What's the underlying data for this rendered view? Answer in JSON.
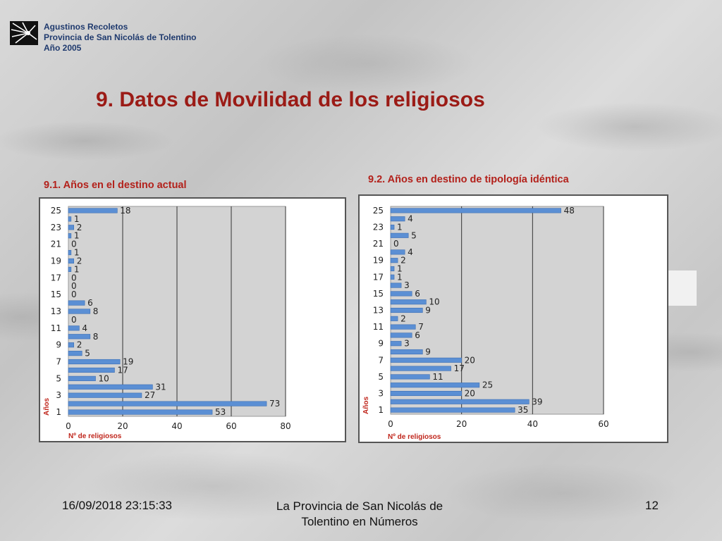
{
  "header": {
    "org_line1": "Agustinos Recoletos",
    "org_line2": "Provincia de San Nicolás de Tolentino",
    "org_line3": "Año 2005"
  },
  "slide": {
    "title": "9. Datos de Movilidad de los religiosos"
  },
  "footer": {
    "date": "16/09/2018 23:15:33",
    "center_line1": "La Provincia de San Nicolás de",
    "center_line2": "Tolentino en Números",
    "page": "12"
  },
  "colors": {
    "bar": "#5b8fd4",
    "title": "#9b1b16",
    "axis_label": "#c0261c",
    "plot_bg": "#d3d3d3"
  },
  "chart_data": [
    {
      "type": "bar",
      "orientation": "horizontal",
      "title": "9.1. Años en el destino actual",
      "xlabel": "Nº de religiosos",
      "ylabel": "Años",
      "categories": [
        1,
        2,
        3,
        4,
        5,
        6,
        7,
        8,
        9,
        10,
        11,
        12,
        13,
        14,
        15,
        16,
        17,
        18,
        19,
        20,
        21,
        22,
        23,
        24,
        25
      ],
      "values": [
        53,
        73,
        27,
        31,
        10,
        17,
        19,
        5,
        2,
        8,
        4,
        0,
        8,
        6,
        0,
        0,
        0,
        1,
        2,
        1,
        0,
        1,
        2,
        1,
        18
      ],
      "ytick_labels": [
        "1",
        "3",
        "5",
        "7",
        "9",
        "11",
        "13",
        "15",
        "17",
        "19",
        "21",
        "23",
        "25"
      ],
      "xticks": [
        "0",
        "20",
        "40",
        "60",
        "80"
      ],
      "xlim": [
        0,
        80
      ]
    },
    {
      "type": "bar",
      "orientation": "horizontal",
      "title": "9.2. Años en destino de tipología idéntica",
      "xlabel": "Nº de religiosos",
      "ylabel": "Años",
      "categories": [
        1,
        2,
        3,
        4,
        5,
        6,
        7,
        8,
        9,
        10,
        11,
        12,
        13,
        14,
        15,
        16,
        17,
        18,
        19,
        20,
        21,
        22,
        23,
        24,
        25
      ],
      "values": [
        35,
        39,
        20,
        25,
        11,
        17,
        20,
        9,
        3,
        6,
        7,
        2,
        9,
        10,
        6,
        3,
        1,
        1,
        2,
        4,
        0,
        5,
        1,
        4,
        48
      ],
      "ytick_labels": [
        "1",
        "3",
        "5",
        "7",
        "9",
        "11",
        "13",
        "15",
        "17",
        "19",
        "21",
        "23",
        "25"
      ],
      "xticks": [
        "0",
        "20",
        "40",
        "60"
      ],
      "xlim": [
        0,
        60
      ]
    }
  ]
}
